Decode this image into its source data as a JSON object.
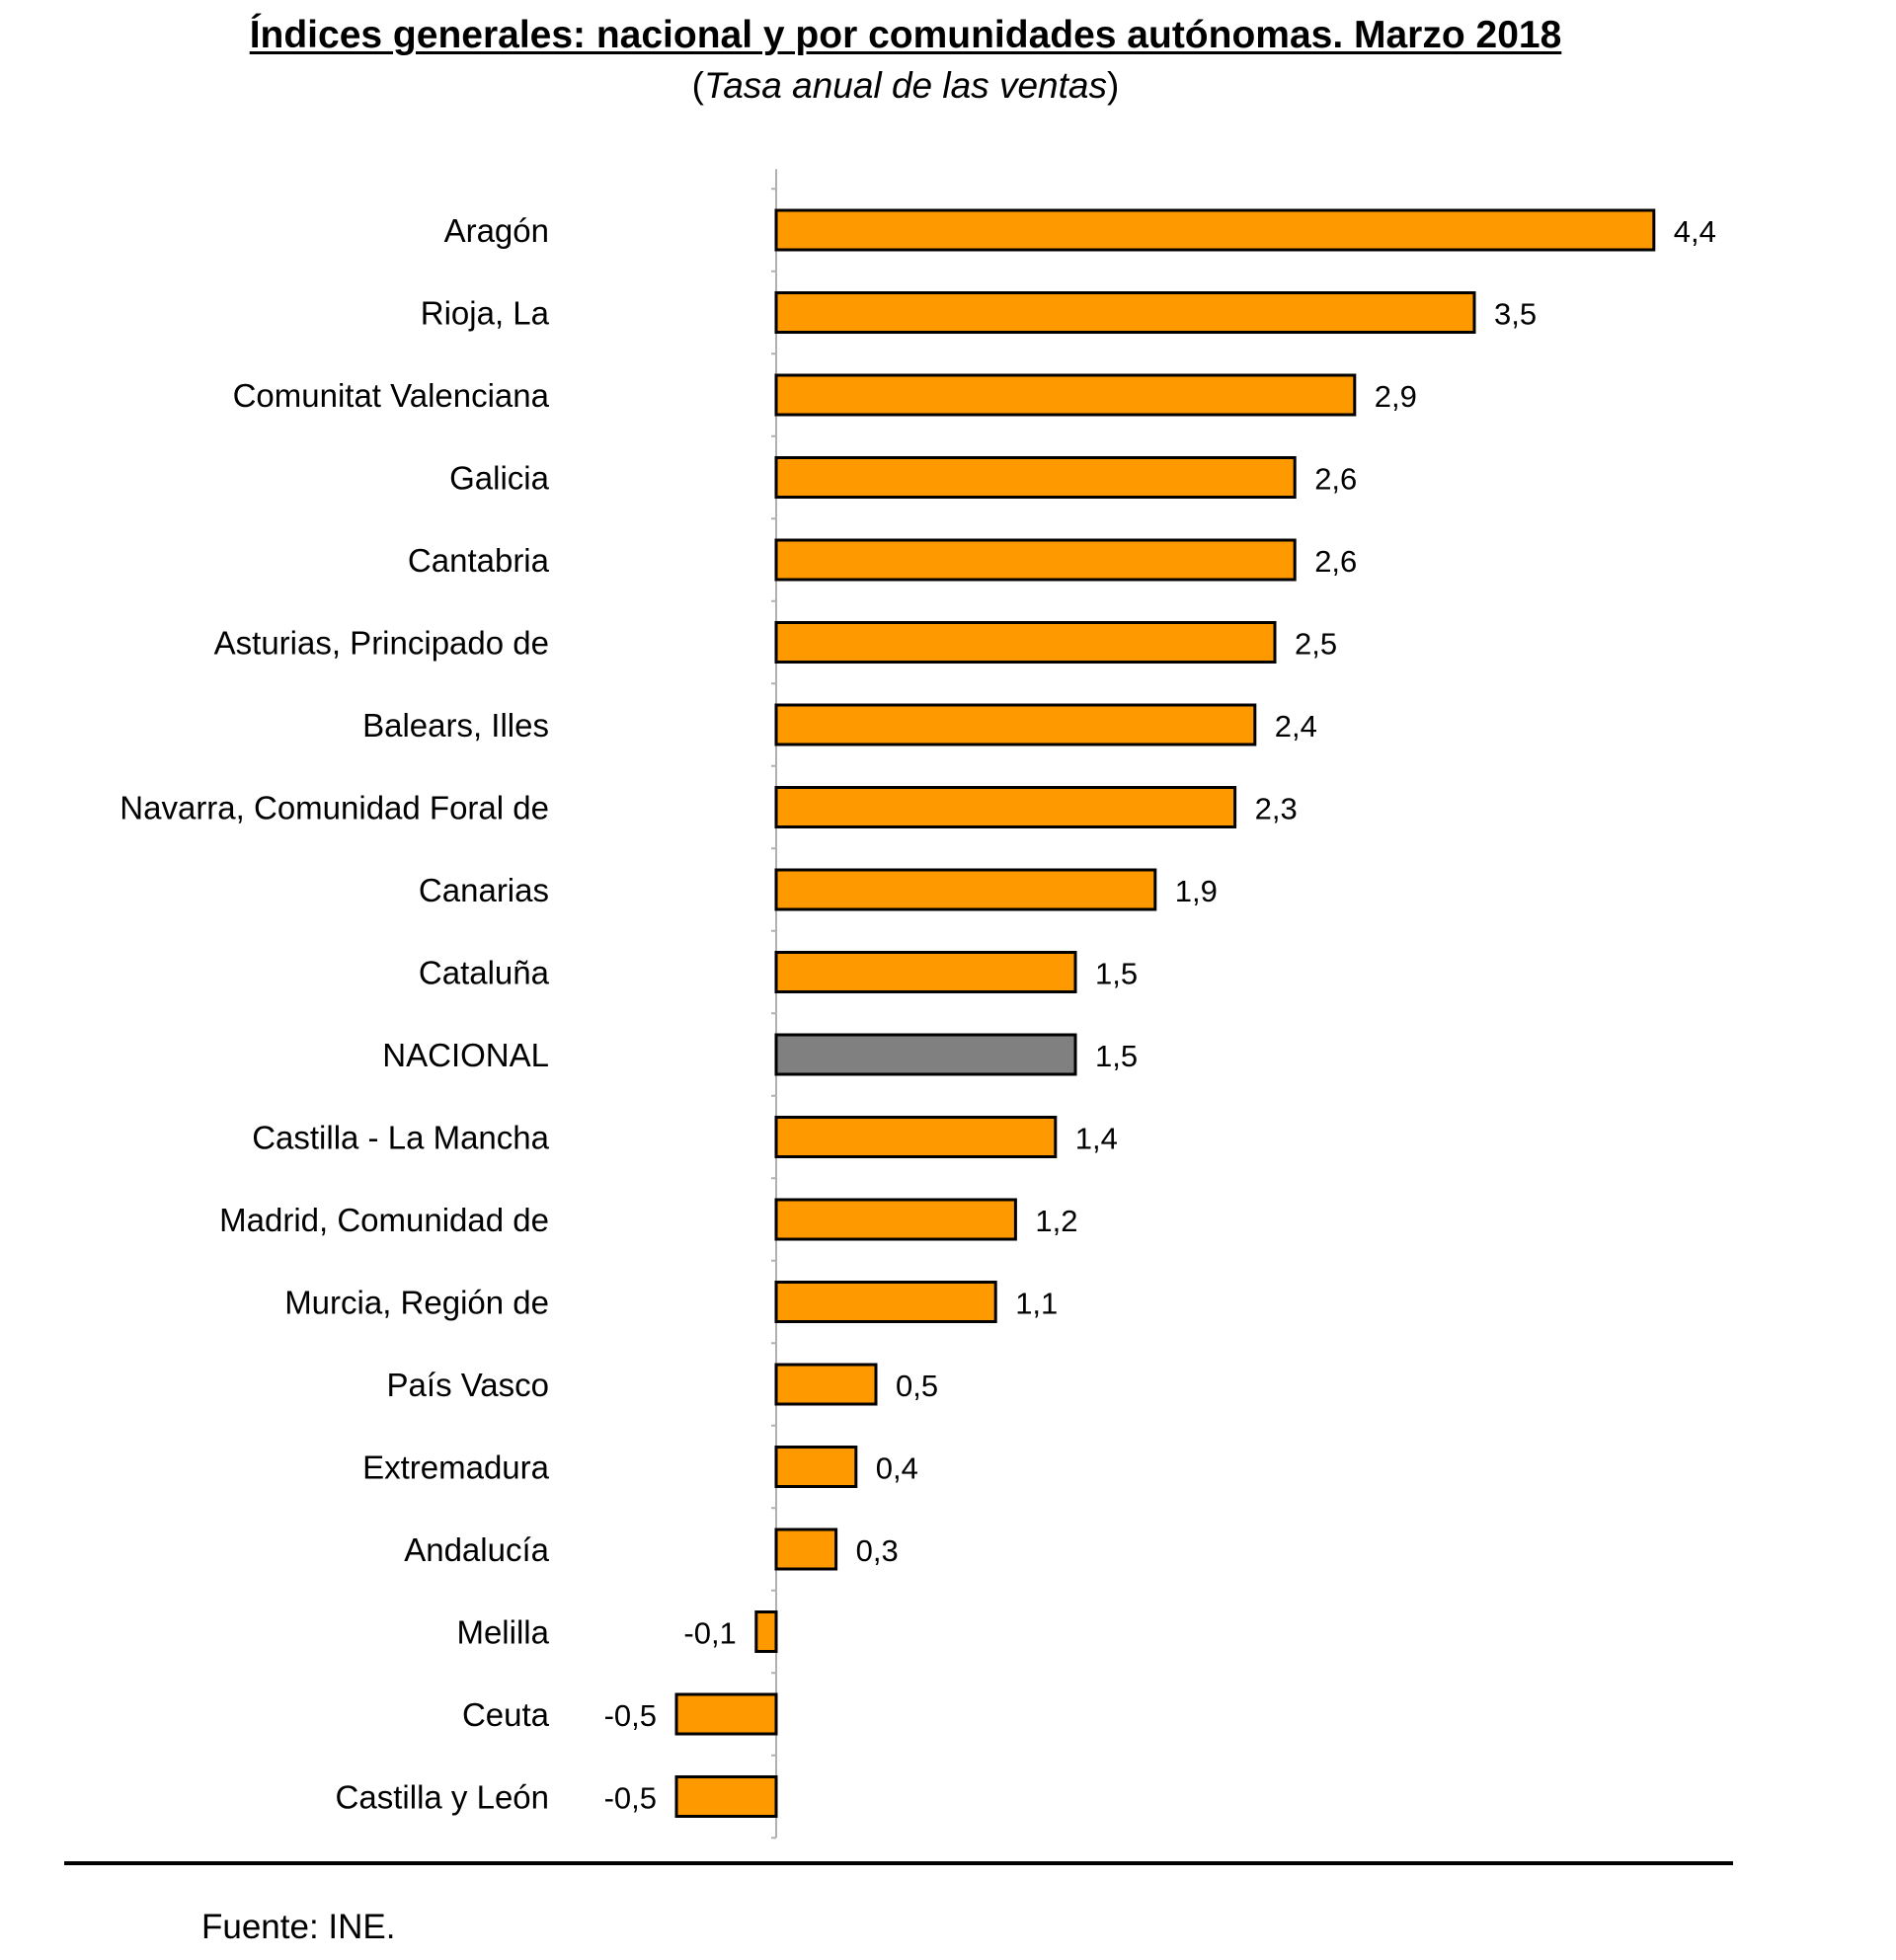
{
  "title": "Índices generales: nacional y por comunidades autónomas. Marzo 2018",
  "subtitle_open": "(",
  "subtitle_text": "Tasa anual de las ventas",
  "subtitle_close": ")",
  "source": "Fuente: INE.",
  "colors": {
    "regional": "#FF9900",
    "national": "#808080",
    "outline": "#000000"
  },
  "chart_data": {
    "type": "bar",
    "orientation": "horizontal",
    "title": "Índices generales: nacional y por comunidades autónomas. Marzo 2018",
    "subtitle": "(Tasa anual de las ventas)",
    "xlabel": "",
    "ylabel": "",
    "xlim": [
      -0.5,
      4.4
    ],
    "grid": false,
    "categories": [
      "Aragón",
      "Rioja, La",
      "Comunitat Valenciana",
      "Galicia",
      "Cantabria",
      "Asturias, Principado de",
      "Balears, Illes",
      "Navarra, Comunidad Foral de",
      "Canarias",
      "Cataluña",
      "NACIONAL",
      "Castilla - La Mancha",
      "Madrid, Comunidad de",
      "Murcia, Región de",
      "País Vasco",
      "Extremadura",
      "Andalucía",
      "Melilla",
      "Ceuta",
      "Castilla y León"
    ],
    "values": [
      4.4,
      3.5,
      2.9,
      2.6,
      2.6,
      2.5,
      2.4,
      2.3,
      1.9,
      1.5,
      1.5,
      1.4,
      1.2,
      1.1,
      0.5,
      0.4,
      0.3,
      -0.1,
      -0.5,
      -0.5
    ],
    "labels": [
      "4,4",
      "3,5",
      "2,9",
      "2,6",
      "2,6",
      "2,5",
      "2,4",
      "2,3",
      "1,9",
      "1,5",
      "1,5",
      "1,4",
      "1,2",
      "1,1",
      "0,5",
      "0,4",
      "0,3",
      "-0,1",
      "-0,5",
      "-0,5"
    ],
    "highlight": "NACIONAL"
  }
}
